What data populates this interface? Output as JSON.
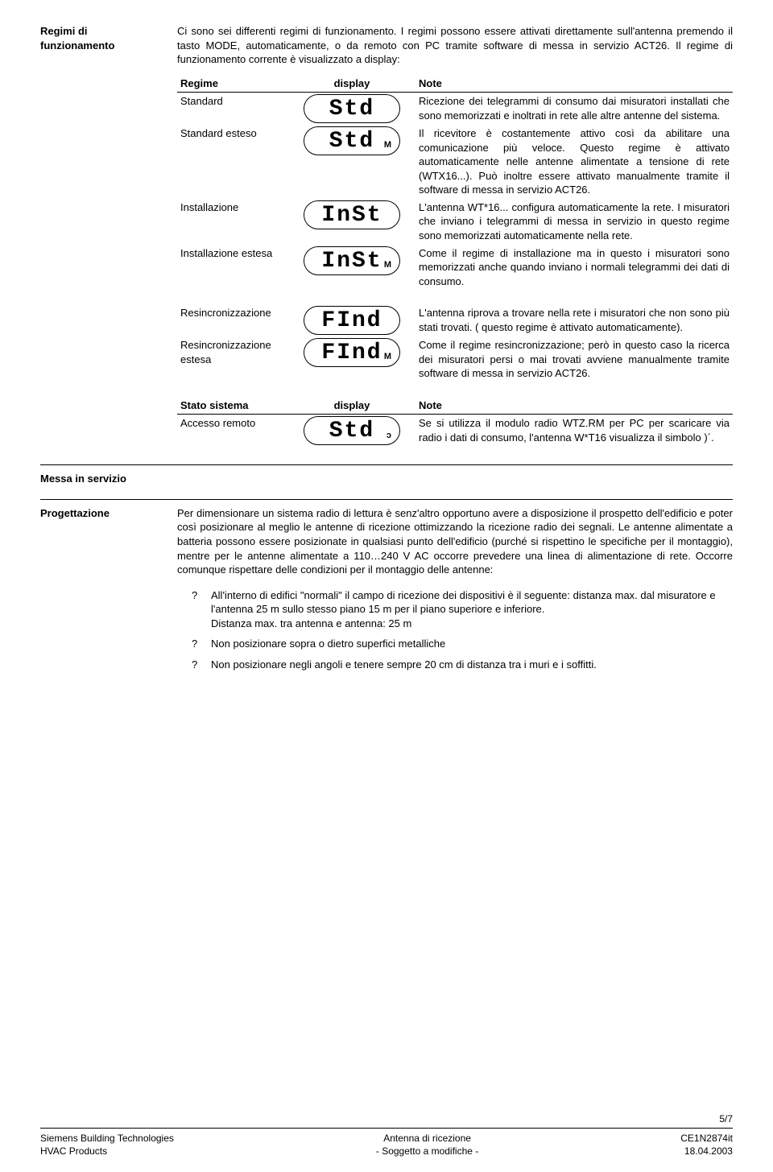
{
  "header": {
    "left_title_line1": "Regimi di",
    "left_title_line2": "funzionamento",
    "intro": "Ci sono sei differenti regimi di funzionamento. I regimi possono essere attivati direttamente sull'antenna premendo il tasto MODE, automaticamente, o da remoto con PC tramite software di messa in servizio ACT26. Il regime di funzionamento corrente è visualizzato a display:"
  },
  "table1": {
    "h_regime": "Regime",
    "h_display": "display",
    "h_note": "Note",
    "rows": [
      {
        "regime": "Standard",
        "display": "Std",
        "sub": "",
        "note": "Ricezione dei telegrammi di consumo dai misuratori installati che sono memorizzati e inoltrati in rete alle altre antenne del sistema."
      },
      {
        "regime": "Standard esteso",
        "display": "Std",
        "sub": "M",
        "note": "Il ricevitore è costantemente attivo così da abilitare una comunicazione più veloce. Questo regime è attivato automaticamente nelle antenne alimentate a tensione di rete (WTX16...). Può inoltre essere attivato manualmente tramite il software di messa in servizio ACT26."
      },
      {
        "regime": "Installazione",
        "display": "InSt",
        "sub": "",
        "note": "L'antenna WT*16... configura automaticamente la rete. I misuratori che inviano i telegrammi di messa in servizio in questo regime sono memorizzati automaticamente nella rete."
      },
      {
        "regime": "Installazione estesa",
        "display": "InSt",
        "sub": "M",
        "note": "Come il regime di installazione ma in questo i misuratori sono memorizzati anche quando inviano i normali telegrammi dei dati di consumo."
      }
    ],
    "rows2": [
      {
        "regime": "Resincronizzazione",
        "display": "FInd",
        "sub": "",
        "note": "L'antenna riprova a trovare nella rete i misuratori che non sono più stati trovati. ( questo regime è attivato automaticamente)."
      },
      {
        "regime": "Resincronizzazione estesa",
        "display": "FInd",
        "sub": "M",
        "note": "Come il regime resincronizzazione; però in questo caso la ricerca dei misuratori persi o mai trovati avviene manualmente tramite software di messa in servizio ACT26."
      }
    ]
  },
  "table2": {
    "h_regime": "Stato sistema",
    "h_display": "display",
    "h_note": "Note",
    "row": {
      "regime": "Accesso remoto",
      "display": "Std",
      "sub": "ɔ",
      "note": "Se si utilizza il modulo radio WTZ.RM per PC per scaricare via radio i dati di consumo, l'antenna W*T16 visualizza il simbolo )´."
    }
  },
  "messa": {
    "title": "Messa in servizio",
    "left": "Progettazione",
    "body": "Per dimensionare un sistema radio di lettura è senz'altro opportuno avere a disposizione il prospetto dell'edificio e poter così posizionare al meglio le antenne di ricezione ottimizzando la ricezione radio dei segnali. Le antenne alimentate a batteria possono essere posizionate in qualsiasi punto dell'edificio (purché si rispettino le specifiche per il montaggio), mentre per le antenne alimentate a 110…240 V AC occorre prevedere una linea di alimentazione di rete. Occorre comunque rispettare delle condizioni per il montaggio delle antenne:",
    "bullets": [
      "All'interno di edifici \"normali\" il campo di ricezione dei dispositivi è il seguente: distanza max. dal misuratore e l'antenna 25 m sullo stesso piano 15 m per il piano superiore e inferiore.\nDistanza max. tra antenna e antenna: 25 m",
      "Non posizionare sopra o dietro superfici metalliche",
      "Non posizionare negli angoli e tenere sempre 20 cm di distanza tra i muri e i soffitti."
    ],
    "bullet_mark": "?"
  },
  "footer": {
    "page": "5/7",
    "left1": "Siemens Building Technologies",
    "left2": "HVAC Products",
    "center1": "Antenna di ricezione",
    "center2": "- Soggetto a modifiche -",
    "right1": "CE1N2874it",
    "right2": "18.04.2003"
  }
}
